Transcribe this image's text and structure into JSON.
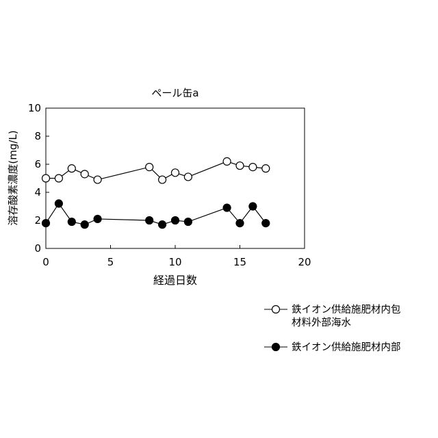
{
  "chart_data": {
    "type": "line",
    "title": "ペール缶a",
    "xlabel": "経過日数",
    "ylabel": "溶存酸素濃度(mg/L)",
    "xlim": [
      0,
      20
    ],
    "ylim": [
      0,
      10
    ],
    "x_ticks": [
      0,
      5,
      10,
      15,
      20
    ],
    "y_ticks": [
      0,
      2,
      4,
      6,
      8,
      10
    ],
    "grid": false,
    "legend_position": "bottom-right, outside plot",
    "series": [
      {
        "name": "鉄イオン供給施肥材内包材料外部海水",
        "legend_lines": [
          "鉄イオン供給施肥材内包",
          "材料外部海水"
        ],
        "marker": "open-circle",
        "color": "#000000",
        "x": [
          0,
          1,
          2,
          3,
          4,
          8,
          9,
          10,
          11,
          14,
          15,
          16,
          17
        ],
        "y": [
          5.0,
          5.0,
          5.7,
          5.3,
          4.9,
          5.8,
          4.9,
          5.4,
          5.1,
          6.2,
          5.9,
          5.8,
          5.7
        ]
      },
      {
        "name": "鉄イオン供給施肥材内部",
        "legend_lines": [
          "鉄イオン供給施肥材内部"
        ],
        "marker": "filled-circle",
        "color": "#000000",
        "x": [
          0,
          1,
          2,
          3,
          4,
          8,
          9,
          10,
          11,
          14,
          15,
          16,
          17
        ],
        "y": [
          1.8,
          3.2,
          1.9,
          1.7,
          2.1,
          2.0,
          1.7,
          2.0,
          1.9,
          2.9,
          1.8,
          3.0,
          1.8
        ]
      }
    ]
  }
}
